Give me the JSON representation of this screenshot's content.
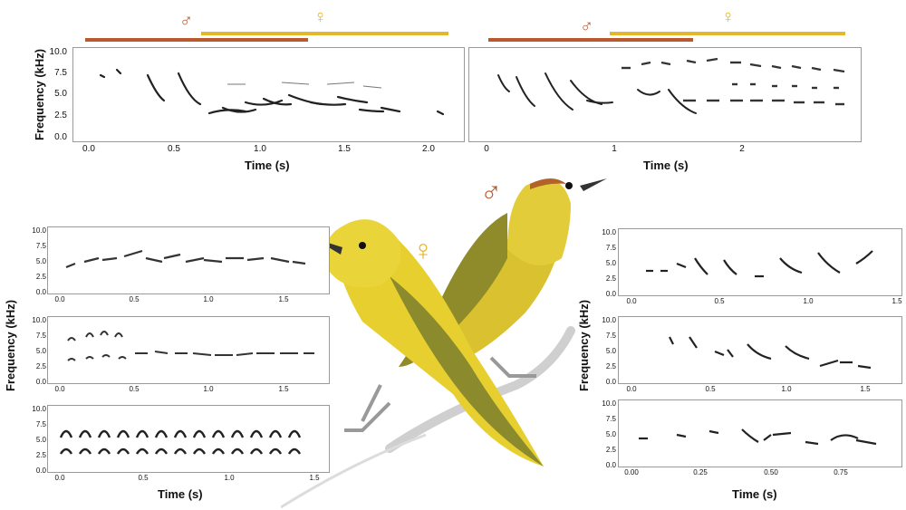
{
  "colors": {
    "male": "#b85a2e",
    "female": "#e4b82c",
    "ink": "#1a1a1a"
  },
  "symbols": {
    "male": "♂",
    "female": "♀"
  },
  "labels": {
    "frequency": "Frequency (kHz)",
    "time": "Time (s)"
  },
  "top_left": {
    "yticks": [
      "10.0",
      "7.5",
      "5.0",
      "2.5",
      "0.0"
    ],
    "xticks": [
      "0.0",
      "0.5",
      "1.0",
      "1.5",
      "2.0"
    ]
  },
  "top_right": {
    "xticks": [
      "0",
      "1",
      "2"
    ]
  },
  "left_stack": {
    "yticks": [
      "10.0",
      "7.5",
      "5.0",
      "2.5",
      "0.0"
    ],
    "xticks_a": [
      "0.0",
      "0.5",
      "1.0",
      "1.5"
    ],
    "xticks_b": [
      "0.0",
      "0.5",
      "1.0",
      "1.5"
    ],
    "xticks_c": [
      "0.0",
      "0.5",
      "1.0",
      "1.5"
    ]
  },
  "right_stack": {
    "yticks": [
      "10.0",
      "7.5",
      "5.0",
      "2.5",
      "0.0"
    ],
    "xticks_a": [
      "0.0",
      "0.5",
      "1.0",
      "1.5"
    ],
    "xticks_b": [
      "0.0",
      "0.5",
      "1.0",
      "1.5"
    ],
    "xticks_c": [
      "0.00",
      "0.25",
      "0.50",
      "0.75"
    ]
  }
}
